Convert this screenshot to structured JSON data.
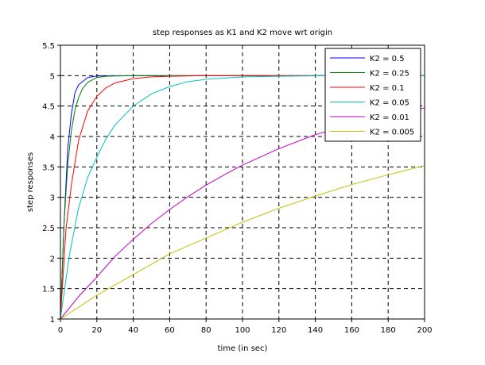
{
  "chart_data": {
    "type": "line",
    "title": "step responses as K1 and K2 move wrt origin",
    "xlabel": "time (in sec)",
    "ylabel": "step responses",
    "xlim": [
      0,
      200
    ],
    "ylim": [
      1,
      5.5
    ],
    "x_ticks": [
      "0",
      "20",
      "40",
      "60",
      "80",
      "100",
      "120",
      "140",
      "160",
      "180",
      "200"
    ],
    "y_ticks": [
      "1",
      "1.5",
      "2",
      "2.5",
      "3",
      "3.5",
      "4",
      "4.5",
      "5",
      "5.5"
    ],
    "grid": true,
    "grid_style": "dashed",
    "legend_position": "top-right",
    "series": [
      {
        "name": "K2 = 0.5",
        "color": "#0000ff",
        "x": [
          0,
          2,
          4,
          6,
          8,
          10,
          15,
          20,
          40,
          100,
          200
        ],
        "y": [
          1,
          2.58,
          3.79,
          4.37,
          4.72,
          4.85,
          4.97,
          4.995,
          5,
          5,
          5
        ]
      },
      {
        "name": "K2 = 0.25",
        "color": "#008000",
        "x": [
          0,
          2,
          4,
          6,
          8,
          10,
          12,
          15,
          20,
          25,
          30,
          40,
          100,
          200
        ],
        "y": [
          1,
          2.58,
          3.53,
          4.09,
          4.44,
          4.64,
          4.78,
          4.89,
          4.97,
          4.99,
          4.995,
          5,
          5,
          5
        ]
      },
      {
        "name": "K2 = 0.1",
        "color": "#ff0000",
        "x": [
          0,
          3,
          6,
          10,
          15,
          20,
          25,
          30,
          40,
          50,
          60,
          80,
          100,
          200
        ],
        "y": [
          1,
          2.46,
          3.2,
          3.94,
          4.42,
          4.66,
          4.8,
          4.88,
          4.95,
          4.98,
          4.99,
          5,
          5,
          5
        ]
      },
      {
        "name": "K2 = 0.05",
        "color": "#00c0c0",
        "x": [
          0,
          5,
          10,
          15,
          20,
          25,
          30,
          40,
          50,
          60,
          70,
          80,
          100,
          120,
          150,
          200
        ],
        "y": [
          1,
          2.06,
          2.83,
          3.33,
          3.66,
          3.96,
          4.19,
          4.5,
          4.7,
          4.82,
          4.9,
          4.94,
          4.98,
          4.99,
          5,
          5
        ]
      },
      {
        "name": "K2 = 0.01",
        "color": "#c000c0",
        "x": [
          0,
          10,
          20,
          30,
          40,
          50,
          60,
          70,
          80,
          90,
          100,
          120,
          140,
          160,
          180,
          200
        ],
        "y": [
          1,
          1.37,
          1.69,
          2.03,
          2.31,
          2.57,
          2.8,
          3.01,
          3.2,
          3.37,
          3.53,
          3.8,
          4.03,
          4.2,
          4.35,
          4.47
        ]
      },
      {
        "name": "K2 = 0.005",
        "color": "#c0c000",
        "x": [
          0,
          20,
          40,
          60,
          80,
          100,
          120,
          140,
          160,
          180,
          200
        ],
        "y": [
          1,
          1.39,
          1.73,
          2.07,
          2.33,
          2.59,
          2.82,
          3.02,
          3.21,
          3.37,
          3.52
        ]
      }
    ]
  }
}
